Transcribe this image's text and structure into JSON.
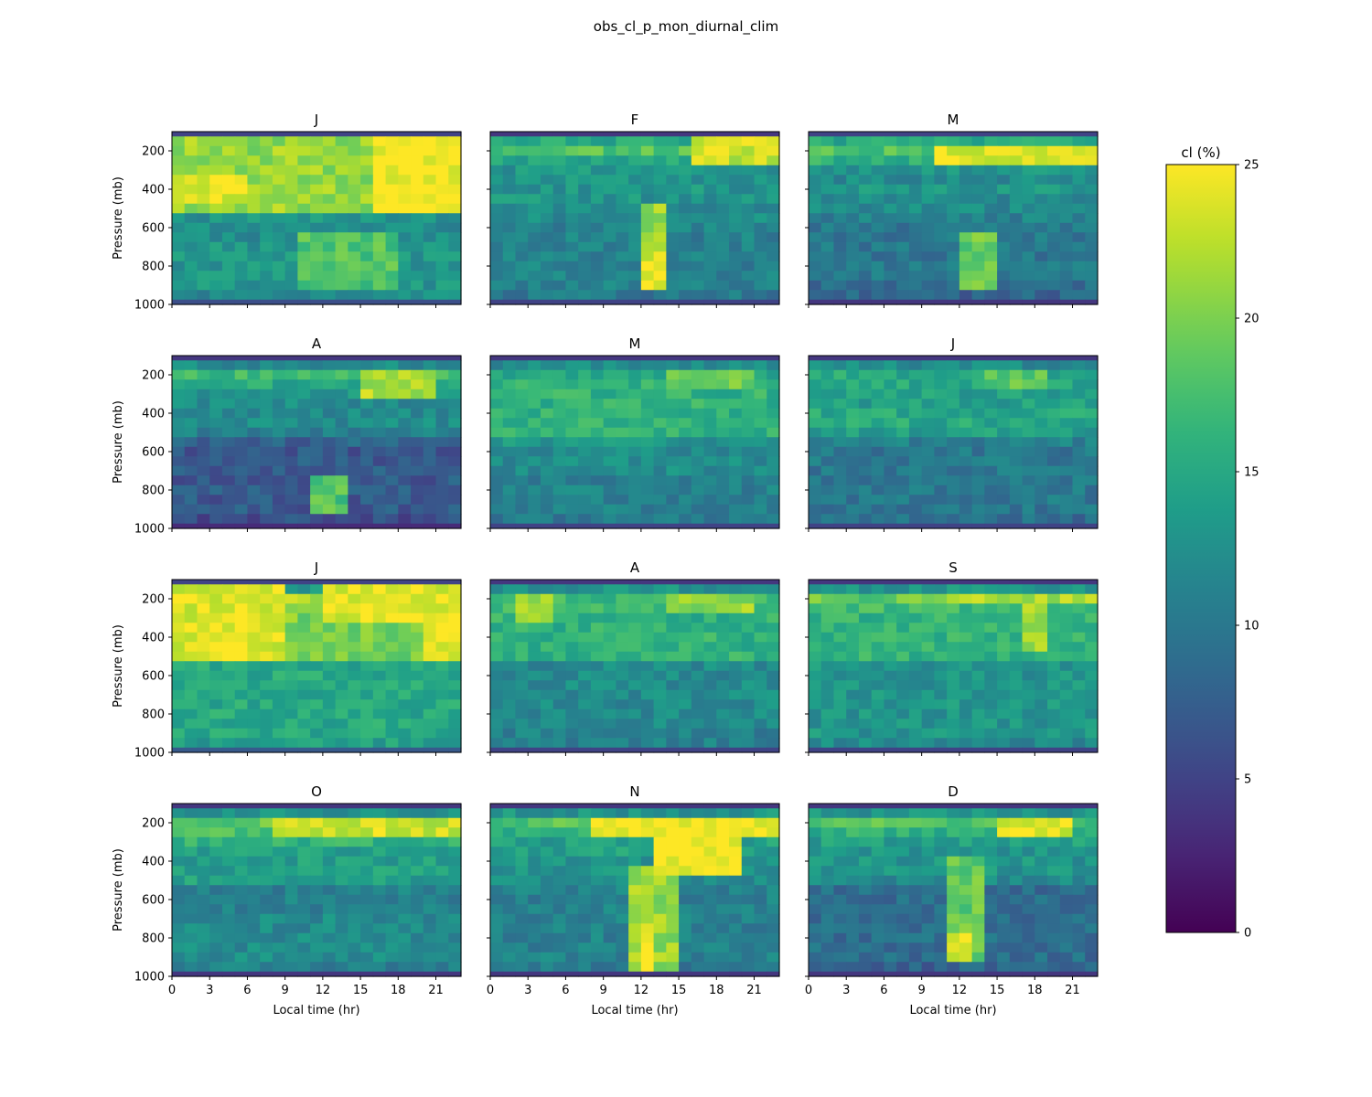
{
  "figure": {
    "title": "obs_cl_p_mon_diurnal_clim"
  },
  "colorbar": {
    "label": "cl (%)",
    "ticks": [
      0,
      5,
      10,
      15,
      20,
      25
    ],
    "range": [
      0,
      25
    ],
    "colormap": "viridis"
  },
  "axes": {
    "xlabel": "Local time (hr)",
    "ylabel": "Pressure (mb)",
    "xticks": [
      0,
      3,
      6,
      9,
      12,
      15,
      18,
      21
    ],
    "yticks": [
      200,
      400,
      600,
      800,
      1000
    ],
    "xlim": [
      0,
      23
    ],
    "ylim": [
      1000,
      100
    ]
  },
  "chart_data": [
    {
      "type": "heatmap",
      "title": "J",
      "month": 1,
      "x": [
        0,
        1,
        2,
        3,
        4,
        5,
        6,
        7,
        8,
        9,
        10,
        11,
        12,
        13,
        14,
        15,
        16,
        17,
        18,
        19,
        20,
        21,
        22
      ],
      "pressure_levels": [
        100,
        125,
        175,
        225,
        275,
        325,
        375,
        425,
        475,
        525,
        575,
        625,
        675,
        725,
        775,
        825,
        875,
        925,
        975
      ],
      "features": [
        {
          "x0": 0,
          "x1": 23,
          "p0": 125,
          "p1": 500,
          "value": 21
        },
        {
          "x0": 16,
          "x1": 23,
          "p0": 150,
          "p1": 500,
          "value": 25
        },
        {
          "x0": 0,
          "x1": 6,
          "p0": 350,
          "p1": 480,
          "value": 24
        },
        {
          "x0": 10,
          "x1": 18,
          "p0": 650,
          "p1": 900,
          "value": 18
        }
      ],
      "base_profile": [
        5,
        12,
        21,
        21,
        20,
        20,
        21,
        21,
        20,
        13,
        12,
        12,
        13,
        13,
        13,
        13,
        13,
        12,
        6
      ]
    },
    {
      "type": "heatmap",
      "title": "F",
      "month": 2,
      "x": [
        0,
        1,
        2,
        3,
        4,
        5,
        6,
        7,
        8,
        9,
        10,
        11,
        12,
        13,
        14,
        15,
        16,
        17,
        18,
        19,
        20,
        21,
        22
      ],
      "pressure_levels": [
        100,
        125,
        175,
        225,
        275,
        325,
        375,
        425,
        475,
        525,
        575,
        625,
        675,
        725,
        775,
        825,
        875,
        925,
        975
      ],
      "features": [
        {
          "x0": 16,
          "x1": 23,
          "p0": 150,
          "p1": 250,
          "value": 23
        },
        {
          "x0": 12,
          "x1": 14,
          "p0": 500,
          "p1": 900,
          "value": 21
        },
        {
          "x0": 12,
          "x1": 14,
          "p0": 750,
          "p1": 900,
          "value": 24
        }
      ],
      "base_profile": [
        4,
        15,
        18,
        15,
        13,
        13,
        13,
        13,
        12,
        12,
        11,
        11,
        11,
        11,
        11,
        11,
        11,
        10,
        5
      ]
    },
    {
      "type": "heatmap",
      "title": "M",
      "month": 3,
      "x": [
        0,
        1,
        2,
        3,
        4,
        5,
        6,
        7,
        8,
        9,
        10,
        11,
        12,
        13,
        14,
        15,
        16,
        17,
        18,
        19,
        20,
        21,
        22
      ],
      "pressure_levels": [
        100,
        125,
        175,
        225,
        275,
        325,
        375,
        425,
        475,
        525,
        575,
        625,
        675,
        725,
        775,
        825,
        875,
        925,
        975
      ],
      "features": [
        {
          "x0": 10,
          "x1": 23,
          "p0": 175,
          "p1": 250,
          "value": 24
        },
        {
          "x0": 12,
          "x1": 15,
          "p0": 650,
          "p1": 900,
          "value": 19
        }
      ],
      "base_profile": [
        5,
        15,
        18,
        16,
        13,
        12,
        13,
        12,
        12,
        11,
        10,
        10,
        10,
        10,
        10,
        10,
        9,
        8,
        4
      ]
    },
    {
      "type": "heatmap",
      "title": "A",
      "month": 4,
      "x": [
        0,
        1,
        2,
        3,
        4,
        5,
        6,
        7,
        8,
        9,
        10,
        11,
        12,
        13,
        14,
        15,
        16,
        17,
        18,
        19,
        20,
        21,
        22
      ],
      "pressure_levels": [
        100,
        125,
        175,
        225,
        275,
        325,
        375,
        425,
        475,
        525,
        575,
        625,
        675,
        725,
        775,
        825,
        875,
        925,
        975
      ],
      "features": [
        {
          "x0": 15,
          "x1": 21,
          "p0": 175,
          "p1": 300,
          "value": 22
        },
        {
          "x0": 11,
          "x1": 14,
          "p0": 750,
          "p1": 900,
          "value": 18
        }
      ],
      "base_profile": [
        4,
        12,
        17,
        15,
        13,
        12,
        12,
        12,
        11,
        8,
        7,
        7,
        7,
        7,
        7,
        7,
        7,
        6,
        3
      ]
    },
    {
      "type": "heatmap",
      "title": "M",
      "month": 5,
      "x": [
        0,
        1,
        2,
        3,
        4,
        5,
        6,
        7,
        8,
        9,
        10,
        11,
        12,
        13,
        14,
        15,
        16,
        17,
        18,
        19,
        20,
        21,
        22
      ],
      "pressure_levels": [
        100,
        125,
        175,
        225,
        275,
        325,
        375,
        425,
        475,
        525,
        575,
        625,
        675,
        725,
        775,
        825,
        875,
        925,
        975
      ],
      "features": [
        {
          "x0": 14,
          "x1": 21,
          "p0": 175,
          "p1": 275,
          "value": 19
        }
      ],
      "base_profile": [
        4,
        12,
        15,
        16,
        16,
        16,
        16,
        16,
        16,
        13,
        12,
        12,
        12,
        11,
        11,
        11,
        11,
        10,
        5
      ]
    },
    {
      "type": "heatmap",
      "title": "J",
      "month": 6,
      "x": [
        0,
        1,
        2,
        3,
        4,
        5,
        6,
        7,
        8,
        9,
        10,
        11,
        12,
        13,
        14,
        15,
        16,
        17,
        18,
        19,
        20,
        21,
        22
      ],
      "pressure_levels": [
        100,
        125,
        175,
        225,
        275,
        325,
        375,
        425,
        475,
        525,
        575,
        625,
        675,
        725,
        775,
        825,
        875,
        925,
        975
      ],
      "features": [
        {
          "x0": 14,
          "x1": 19,
          "p0": 175,
          "p1": 275,
          "value": 19
        }
      ],
      "base_profile": [
        4,
        12,
        15,
        15,
        14,
        14,
        15,
        15,
        14,
        11,
        10,
        10,
        10,
        10,
        10,
        10,
        10,
        9,
        5
      ]
    },
    {
      "type": "heatmap",
      "title": "J",
      "month": 7,
      "x": [
        0,
        1,
        2,
        3,
        4,
        5,
        6,
        7,
        8,
        9,
        10,
        11,
        12,
        13,
        14,
        15,
        16,
        17,
        18,
        19,
        20,
        21,
        22
      ],
      "pressure_levels": [
        100,
        125,
        175,
        225,
        275,
        325,
        375,
        425,
        475,
        525,
        575,
        625,
        675,
        725,
        775,
        825,
        875,
        925,
        975
      ],
      "features": [
        {
          "x0": 0,
          "x1": 9,
          "p0": 150,
          "p1": 525,
          "value": 24
        },
        {
          "x0": 12,
          "x1": 23,
          "p0": 150,
          "p1": 325,
          "value": 24
        },
        {
          "x0": 20,
          "x1": 23,
          "p0": 325,
          "p1": 525,
          "value": 24
        }
      ],
      "base_profile": [
        5,
        14,
        22,
        21,
        20,
        20,
        20,
        20,
        20,
        15,
        15,
        15,
        15,
        15,
        15,
        15,
        15,
        14,
        7
      ]
    },
    {
      "type": "heatmap",
      "title": "A",
      "month": 8,
      "x": [
        0,
        1,
        2,
        3,
        4,
        5,
        6,
        7,
        8,
        9,
        10,
        11,
        12,
        13,
        14,
        15,
        16,
        17,
        18,
        19,
        20,
        21,
        22
      ],
      "pressure_levels": [
        100,
        125,
        175,
        225,
        275,
        325,
        375,
        425,
        475,
        525,
        575,
        625,
        675,
        725,
        775,
        825,
        875,
        925,
        975
      ],
      "features": [
        {
          "x0": 2,
          "x1": 5,
          "p0": 175,
          "p1": 300,
          "value": 21
        },
        {
          "x0": 14,
          "x1": 21,
          "p0": 175,
          "p1": 250,
          "value": 21
        }
      ],
      "base_profile": [
        4,
        13,
        17,
        17,
        16,
        16,
        16,
        16,
        16,
        12,
        12,
        12,
        12,
        12,
        12,
        12,
        11,
        11,
        5
      ]
    },
    {
      "type": "heatmap",
      "title": "S",
      "month": 9,
      "x": [
        0,
        1,
        2,
        3,
        4,
        5,
        6,
        7,
        8,
        9,
        10,
        11,
        12,
        13,
        14,
        15,
        16,
        17,
        18,
        19,
        20,
        21,
        22
      ],
      "pressure_levels": [
        100,
        125,
        175,
        225,
        275,
        325,
        375,
        425,
        475,
        525,
        575,
        625,
        675,
        725,
        775,
        825,
        875,
        925,
        975
      ],
      "features": [
        {
          "x0": 10,
          "x1": 23,
          "p0": 175,
          "p1": 225,
          "value": 22
        },
        {
          "x0": 17,
          "x1": 19,
          "p0": 225,
          "p1": 475,
          "value": 22
        }
      ],
      "base_profile": [
        4,
        13,
        19,
        17,
        16,
        16,
        16,
        16,
        16,
        13,
        13,
        13,
        13,
        13,
        13,
        13,
        13,
        12,
        5
      ]
    },
    {
      "type": "heatmap",
      "title": "O",
      "month": 10,
      "x": [
        0,
        1,
        2,
        3,
        4,
        5,
        6,
        7,
        8,
        9,
        10,
        11,
        12,
        13,
        14,
        15,
        16,
        17,
        18,
        19,
        20,
        21,
        22
      ],
      "pressure_levels": [
        100,
        125,
        175,
        225,
        275,
        325,
        375,
        425,
        475,
        525,
        575,
        625,
        675,
        725,
        775,
        825,
        875,
        925,
        975
      ],
      "features": [
        {
          "x0": 8,
          "x1": 23,
          "p0": 175,
          "p1": 250,
          "value": 23
        }
      ],
      "base_profile": [
        4,
        13,
        19,
        18,
        16,
        14,
        14,
        14,
        14,
        11,
        11,
        11,
        12,
        12,
        12,
        12,
        12,
        11,
        4
      ]
    },
    {
      "type": "heatmap",
      "title": "N",
      "month": 11,
      "x": [
        0,
        1,
        2,
        3,
        4,
        5,
        6,
        7,
        8,
        9,
        10,
        11,
        12,
        13,
        14,
        15,
        16,
        17,
        18,
        19,
        20,
        21,
        22
      ],
      "pressure_levels": [
        100,
        125,
        175,
        225,
        275,
        325,
        375,
        425,
        475,
        525,
        575,
        625,
        675,
        725,
        775,
        825,
        875,
        925,
        975
      ],
      "features": [
        {
          "x0": 8,
          "x1": 23,
          "p0": 175,
          "p1": 250,
          "value": 25
        },
        {
          "x0": 13,
          "x1": 20,
          "p0": 250,
          "p1": 450,
          "value": 25
        },
        {
          "x0": 11,
          "x1": 15,
          "p0": 450,
          "p1": 950,
          "value": 21
        },
        {
          "x0": 12,
          "x1": 13,
          "p0": 750,
          "p1": 950,
          "value": 25
        }
      ],
      "base_profile": [
        4,
        13,
        18,
        16,
        14,
        14,
        13,
        13,
        12,
        11,
        11,
        11,
        11,
        11,
        11,
        11,
        11,
        10,
        4
      ]
    },
    {
      "type": "heatmap",
      "title": "D",
      "month": 12,
      "x": [
        0,
        1,
        2,
        3,
        4,
        5,
        6,
        7,
        8,
        9,
        10,
        11,
        12,
        13,
        14,
        15,
        16,
        17,
        18,
        19,
        20,
        21,
        22
      ],
      "pressure_levels": [
        100,
        125,
        175,
        225,
        275,
        325,
        375,
        425,
        475,
        525,
        575,
        625,
        675,
        725,
        775,
        825,
        875,
        925,
        975
      ],
      "features": [
        {
          "x0": 15,
          "x1": 21,
          "p0": 175,
          "p1": 250,
          "value": 24
        },
        {
          "x0": 11,
          "x1": 14,
          "p0": 400,
          "p1": 900,
          "value": 19
        },
        {
          "x0": 11,
          "x1": 13,
          "p0": 800,
          "p1": 900,
          "value": 23
        }
      ],
      "base_profile": [
        4,
        13,
        18,
        16,
        14,
        13,
        13,
        13,
        12,
        9,
        9,
        9,
        9,
        9,
        9,
        9,
        9,
        8,
        4
      ]
    }
  ]
}
